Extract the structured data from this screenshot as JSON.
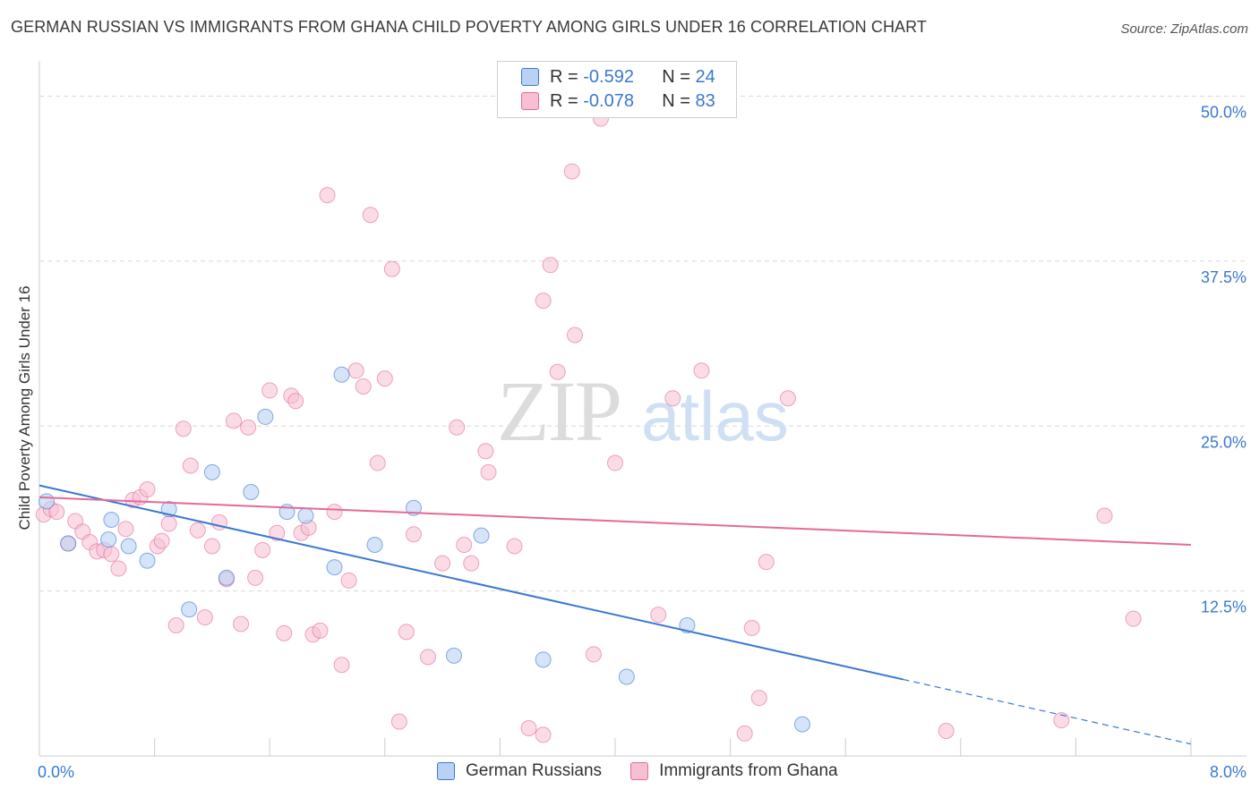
{
  "title": "GERMAN RUSSIAN VS IMMIGRANTS FROM GHANA CHILD POVERTY AMONG GIRLS UNDER 16 CORRELATION CHART",
  "source": "Source: ZipAtlas.com",
  "watermark": {
    "zip": "ZIP",
    "atlas": "atlas"
  },
  "legend_top": [
    {
      "r_label": "R = ",
      "r_value": "-0.592",
      "n_label": "N = ",
      "n_value": "24"
    },
    {
      "r_label": "R = ",
      "r_value": "-0.078",
      "n_label": "N = ",
      "n_value": "83"
    }
  ],
  "legend_bottom": [
    "German Russians",
    "Immigrants from Ghana"
  ],
  "colors": {
    "blue": "#3a78d1",
    "blue_fill": "#b9d2f3",
    "pink": "#e5699a",
    "pink_fill": "#f7bfd2",
    "grid": "#d8d8d8",
    "tick_label": "#3a78d1"
  },
  "chart_data": {
    "type": "scatter",
    "xlabel": "",
    "ylabel": "Child Poverty Among Girls Under 16",
    "xlim": [
      0,
      8
    ],
    "ylim": [
      0,
      52
    ],
    "x_tick_labels": [
      "0.0%",
      "8.0%"
    ],
    "y_ticks": [
      12.5,
      25.0,
      37.5,
      50.0
    ],
    "y_tick_labels": [
      "12.5%",
      "25.0%",
      "37.5%",
      "50.0%"
    ],
    "grid": true,
    "series": [
      {
        "name": "German Russians",
        "color": "#3a78d1",
        "points": [
          [
            0.05,
            19.3
          ],
          [
            0.2,
            16.1
          ],
          [
            0.5,
            17.9
          ],
          [
            0.48,
            16.4
          ],
          [
            0.62,
            15.9
          ],
          [
            0.75,
            14.8
          ],
          [
            0.9,
            18.7
          ],
          [
            1.04,
            11.1
          ],
          [
            1.2,
            21.5
          ],
          [
            1.3,
            13.5
          ],
          [
            1.47,
            20.0
          ],
          [
            1.57,
            25.7
          ],
          [
            1.72,
            18.5
          ],
          [
            1.85,
            18.2
          ],
          [
            2.05,
            14.3
          ],
          [
            2.1,
            28.9
          ],
          [
            2.33,
            16.0
          ],
          [
            2.6,
            18.8
          ],
          [
            2.88,
            7.6
          ],
          [
            3.07,
            16.7
          ],
          [
            3.5,
            7.3
          ],
          [
            4.08,
            6.0
          ],
          [
            4.5,
            9.9
          ],
          [
            5.3,
            2.4
          ]
        ],
        "trend": {
          "x0": 0,
          "y0": 20.5,
          "x1": 6.0,
          "y1": 5.8,
          "x_dash_end": 8.0,
          "y_dash_end": 0.9
        }
      },
      {
        "name": "Immigrants from Ghana",
        "color": "#e5699a",
        "points": [
          [
            0.03,
            18.3
          ],
          [
            0.08,
            18.7
          ],
          [
            0.12,
            18.5
          ],
          [
            0.2,
            16.1
          ],
          [
            0.25,
            17.8
          ],
          [
            0.3,
            17.0
          ],
          [
            0.35,
            16.2
          ],
          [
            0.4,
            15.5
          ],
          [
            0.45,
            15.6
          ],
          [
            0.5,
            15.3
          ],
          [
            0.55,
            14.2
          ],
          [
            0.6,
            17.2
          ],
          [
            0.65,
            19.4
          ],
          [
            0.7,
            19.6
          ],
          [
            0.75,
            20.2
          ],
          [
            0.82,
            15.9
          ],
          [
            0.85,
            16.3
          ],
          [
            0.9,
            17.6
          ],
          [
            0.95,
            9.9
          ],
          [
            1.0,
            24.8
          ],
          [
            1.05,
            22.0
          ],
          [
            1.1,
            17.1
          ],
          [
            1.15,
            10.5
          ],
          [
            1.2,
            15.9
          ],
          [
            1.25,
            17.7
          ],
          [
            1.3,
            13.4
          ],
          [
            1.35,
            25.4
          ],
          [
            1.4,
            10.0
          ],
          [
            1.45,
            24.9
          ],
          [
            1.5,
            13.5
          ],
          [
            1.55,
            15.6
          ],
          [
            1.6,
            27.7
          ],
          [
            1.65,
            16.9
          ],
          [
            1.7,
            9.3
          ],
          [
            1.75,
            27.3
          ],
          [
            1.78,
            26.9
          ],
          [
            1.82,
            16.9
          ],
          [
            1.87,
            17.3
          ],
          [
            1.9,
            9.2
          ],
          [
            1.95,
            9.5
          ],
          [
            2.0,
            42.5
          ],
          [
            2.05,
            18.5
          ],
          [
            2.1,
            6.9
          ],
          [
            2.15,
            13.3
          ],
          [
            2.2,
            29.2
          ],
          [
            2.25,
            28.0
          ],
          [
            2.3,
            41.0
          ],
          [
            2.35,
            22.2
          ],
          [
            2.4,
            28.6
          ],
          [
            2.45,
            36.9
          ],
          [
            2.5,
            2.6
          ],
          [
            2.55,
            9.4
          ],
          [
            2.6,
            16.8
          ],
          [
            2.7,
            7.5
          ],
          [
            2.8,
            14.6
          ],
          [
            2.9,
            24.9
          ],
          [
            2.95,
            16.0
          ],
          [
            3.0,
            14.6
          ],
          [
            3.1,
            23.1
          ],
          [
            3.12,
            21.5
          ],
          [
            3.3,
            15.9
          ],
          [
            3.4,
            2.1
          ],
          [
            3.5,
            1.6
          ],
          [
            3.5,
            34.5
          ],
          [
            3.55,
            37.2
          ],
          [
            3.6,
            29.1
          ],
          [
            3.7,
            44.3
          ],
          [
            3.72,
            31.9
          ],
          [
            3.85,
            7.7
          ],
          [
            3.9,
            48.3
          ],
          [
            4.0,
            22.2
          ],
          [
            4.3,
            10.7
          ],
          [
            4.4,
            27.1
          ],
          [
            4.6,
            29.2
          ],
          [
            4.9,
            1.7
          ],
          [
            4.95,
            9.7
          ],
          [
            5.0,
            4.4
          ],
          [
            5.05,
            14.7
          ],
          [
            5.2,
            27.1
          ],
          [
            6.3,
            1.9
          ],
          [
            7.1,
            2.7
          ],
          [
            7.4,
            18.2
          ],
          [
            7.6,
            10.4
          ]
        ],
        "trend": {
          "x0": 0,
          "y0": 19.6,
          "x1": 8.0,
          "y1": 16.0
        }
      }
    ]
  }
}
